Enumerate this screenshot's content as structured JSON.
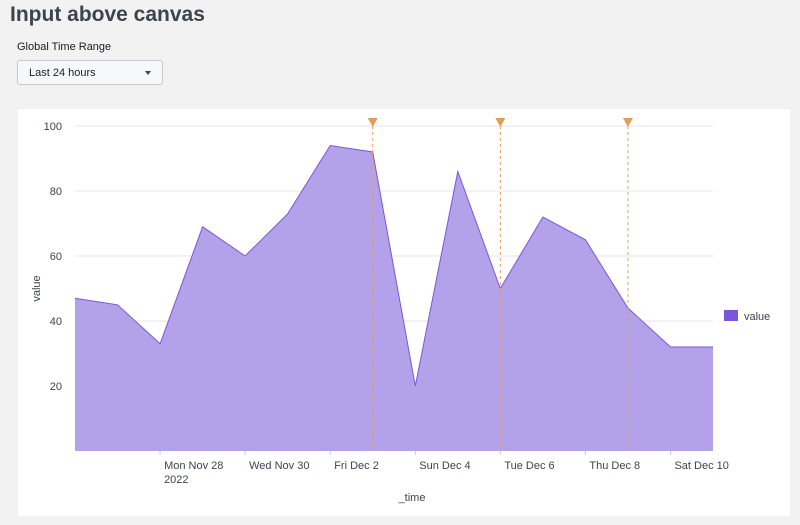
{
  "page": {
    "title": "Input above canvas"
  },
  "time_input": {
    "label": "Global Time Range",
    "selected": "Last 24 hours"
  },
  "colors": {
    "series": "#7b56db",
    "area_fill": "#b3a1e9",
    "annotation": "#e39d59",
    "grid": "#e6e6e8"
  },
  "chart_data": {
    "type": "area",
    "title": "",
    "xlabel": "_time",
    "ylabel": "value",
    "x": [
      "2022-11-26",
      "2022-11-27",
      "2022-11-28",
      "2022-11-29",
      "2022-11-30",
      "2022-12-01",
      "2022-12-02",
      "2022-12-03",
      "2022-12-04",
      "2022-12-05",
      "2022-12-06",
      "2022-12-07",
      "2022-12-08",
      "2022-12-09",
      "2022-12-10",
      "2022-12-11"
    ],
    "series": [
      {
        "name": "value",
        "values": [
          47,
          45,
          33,
          69,
          60,
          73,
          94,
          92,
          20,
          86,
          50,
          72,
          65,
          44,
          32,
          32
        ]
      }
    ],
    "ylim": [
      0,
      100
    ],
    "yticks": [
      20,
      40,
      60,
      80,
      100
    ],
    "xticks": [
      {
        "date": "2022-11-28",
        "label": "Mon Nov 28",
        "sub": "2022"
      },
      {
        "date": "2022-11-30",
        "label": "Wed Nov 30",
        "sub": ""
      },
      {
        "date": "2022-12-02",
        "label": "Fri Dec 2",
        "sub": ""
      },
      {
        "date": "2022-12-04",
        "label": "Sun Dec 4",
        "sub": ""
      },
      {
        "date": "2022-12-06",
        "label": "Tue Dec 6",
        "sub": ""
      },
      {
        "date": "2022-12-08",
        "label": "Thu Dec 8",
        "sub": ""
      },
      {
        "date": "2022-12-10",
        "label": "Sat Dec 10",
        "sub": ""
      }
    ],
    "annotations": [
      "2022-12-03",
      "2022-12-06",
      "2022-12-09"
    ],
    "grid": true,
    "legend": {
      "position": "right",
      "entries": [
        "value"
      ]
    }
  }
}
